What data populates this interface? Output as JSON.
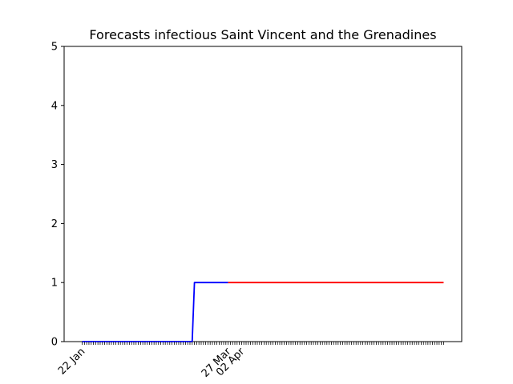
{
  "chart_data": {
    "type": "line",
    "title": "Forecasts infectious Saint Vincent and the Grenadines",
    "xlabel": "",
    "ylabel": "",
    "x_axis": {
      "start_date": "2020-01-22",
      "end_date": "2020-07-01",
      "labeled_ticks": [
        {
          "date": "2020-01-22",
          "label": "22 Jan"
        },
        {
          "date": "2020-03-27",
          "label": "27 Mar"
        },
        {
          "date": "2020-04-02",
          "label": "02 Apr"
        }
      ]
    },
    "ylim": [
      0,
      5
    ],
    "y_ticks": [
      0,
      1,
      2,
      3,
      4,
      5
    ],
    "grid": false,
    "series": [
      {
        "color": "#0000ff",
        "points": [
          {
            "x": "2020-01-22",
            "y": 0
          },
          {
            "x": "2020-03-11",
            "y": 0
          },
          {
            "x": "2020-03-12",
            "y": 1
          },
          {
            "x": "2020-03-27",
            "y": 1
          }
        ]
      },
      {
        "color": "#ff0000",
        "points": [
          {
            "x": "2020-03-27",
            "y": 1
          },
          {
            "x": "2020-07-01",
            "y": 1
          }
        ]
      }
    ]
  }
}
